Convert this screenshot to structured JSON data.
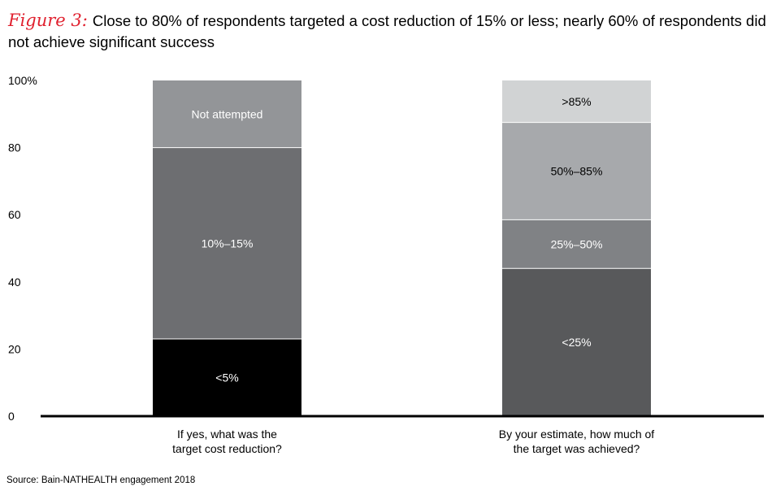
{
  "header": {
    "figure_label": "Figure 3:",
    "title": "Close to 80% of respondents targeted a cost reduction of 15% or less; nearly 60% of respondents did not achieve significant success"
  },
  "source": "Source: Bain-NATHEALTH engagement 2018",
  "chart_data": {
    "type": "bar",
    "stacked": true,
    "title": "Close to 80% of respondents targeted a cost reduction of 15% or less; nearly 60% of respondents did not achieve significant success",
    "xlabel": "",
    "ylabel": "",
    "ylim": [
      0,
      100
    ],
    "y_ticks": [
      {
        "value": 0,
        "label": "0"
      },
      {
        "value": 20,
        "label": "20"
      },
      {
        "value": 40,
        "label": "40"
      },
      {
        "value": 60,
        "label": "60"
      },
      {
        "value": 80,
        "label": "80"
      },
      {
        "value": 100,
        "label": "100%"
      }
    ],
    "grid": false,
    "bars": [
      {
        "category": [
          "If yes, what was the",
          "target cost reduction?"
        ],
        "segments": [
          {
            "name": "<5%",
            "value": 23,
            "color": "#000000",
            "label_color": "#ffffff"
          },
          {
            "name": "10%–15%",
            "value": 57,
            "color": "#6d6e71",
            "label_color": "#ffffff"
          },
          {
            "name": "Not attempted",
            "value": 20,
            "color": "#939598",
            "label_color": "#ffffff"
          }
        ]
      },
      {
        "category": [
          "By your estimate, how much of",
          "the target was achieved?"
        ],
        "segments": [
          {
            "name": "<25%",
            "value": 44,
            "color": "#58595b",
            "label_color": "#ffffff"
          },
          {
            "name": "25%–50%",
            "value": 14.5,
            "color": "#808285",
            "label_color": "#ffffff"
          },
          {
            "name": "50%–85%",
            "value": 29,
            "color": "#a7a9ac",
            "label_color": "#000000"
          },
          {
            "name": ">85%",
            "value": 12.5,
            "color": "#d1d3d4",
            "label_color": "#000000"
          }
        ]
      }
    ]
  }
}
